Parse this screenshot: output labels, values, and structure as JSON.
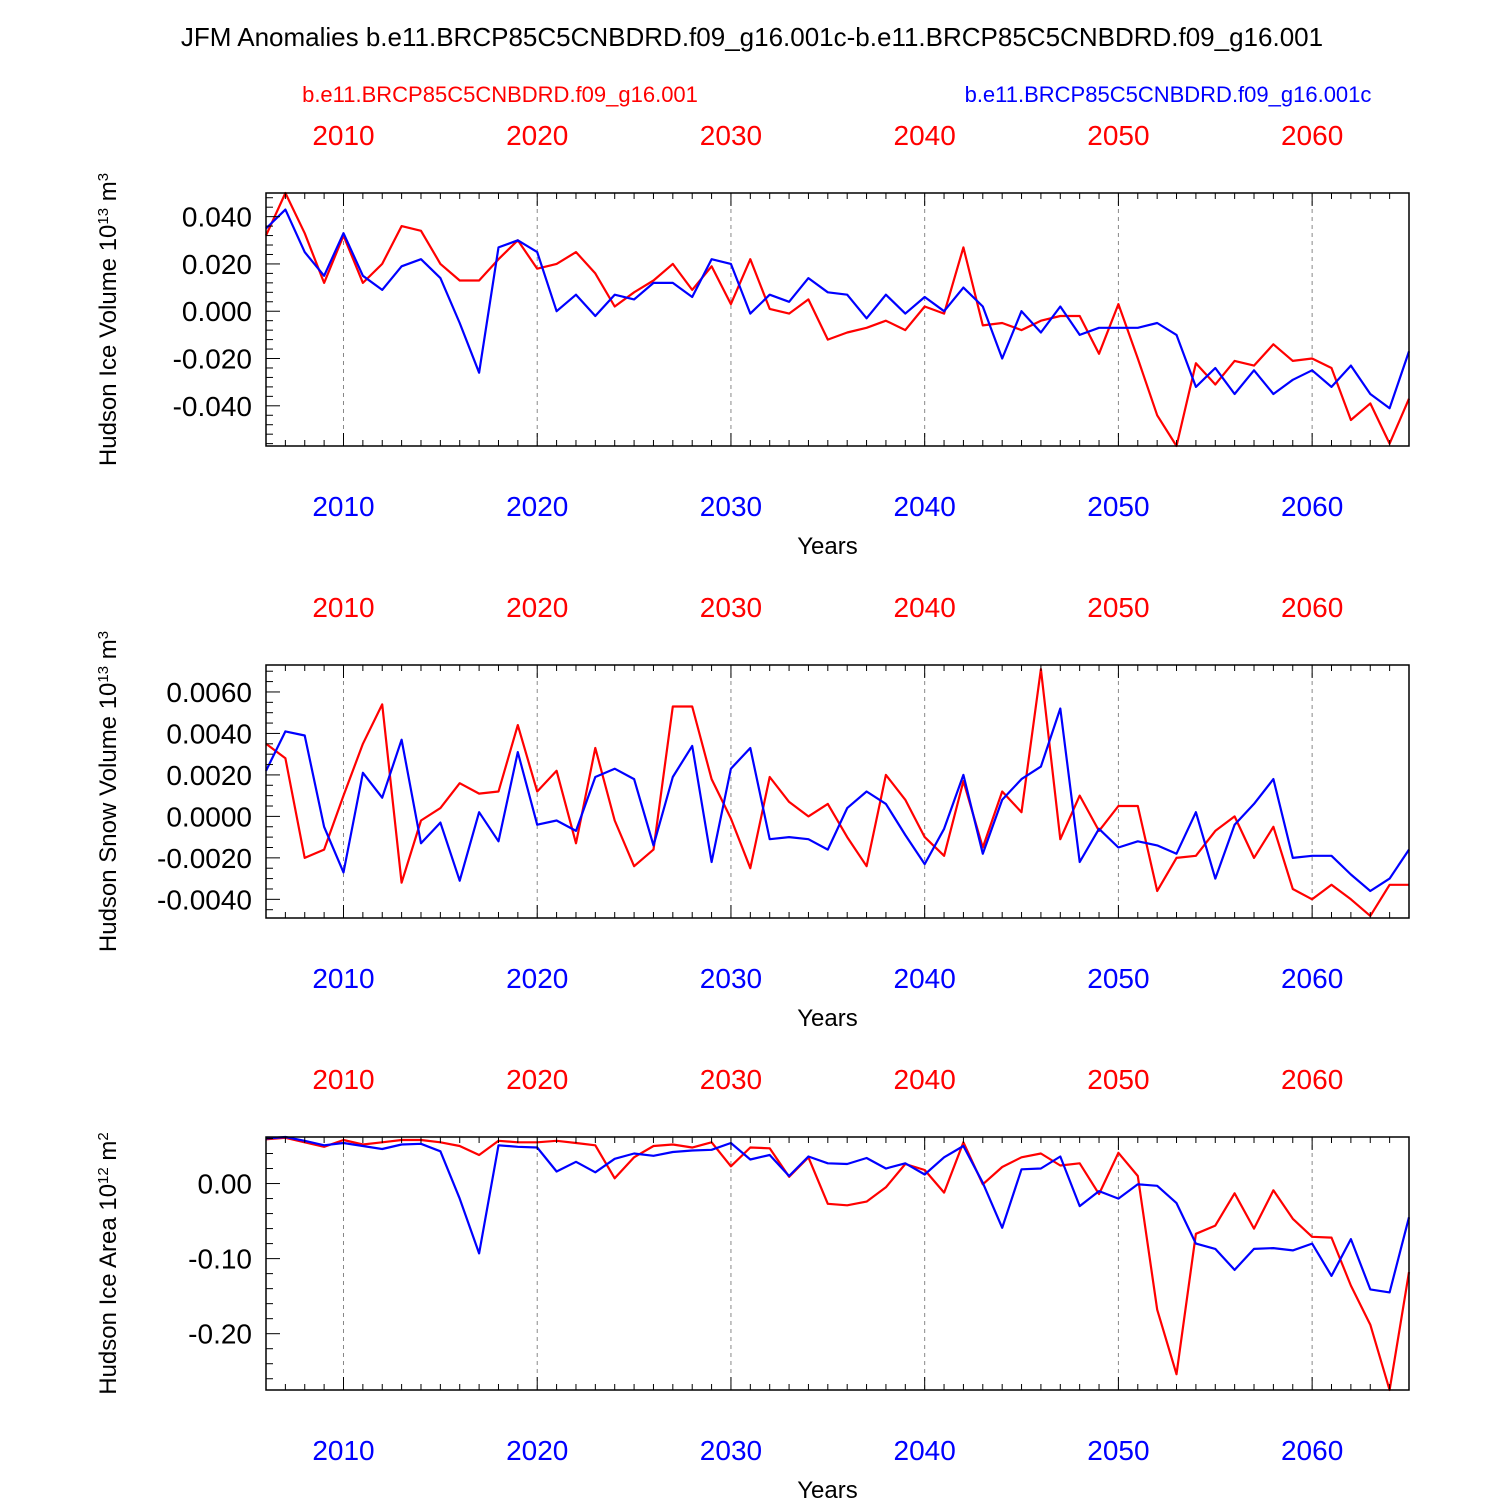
{
  "title": "JFM Anomalies b.e11.BRCP85C5CNBDRD.f09_g16.001c-b.e11.BRCP85C5CNBDRD.f09_g16.001",
  "colors": {
    "red": "#ff0000",
    "blue": "#0000ff",
    "axis": "#000000",
    "grid": "#888888"
  },
  "legend": {
    "red_label": "b.e11.BRCP85C5CNBDRD.f09_g16.001",
    "blue_label": "b.e11.BRCP85C5CNBDRD.f09_g16.001c"
  },
  "chart_data": [
    {
      "type": "line",
      "ylabel": "Hudson Ice Volume 10",
      "ylabel_sup1": "13",
      "ylabel_unit": " m",
      "ylabel_sup2": "3",
      "xlabel": "Years",
      "xlim": [
        2006,
        2065
      ],
      "ylim": [
        -0.057,
        0.05
      ],
      "yticks": [
        0.04,
        0.02,
        0.0,
        -0.02,
        -0.04
      ],
      "ytick_labels": [
        "0.040",
        "0.020",
        "0.000",
        "-0.020",
        "-0.040"
      ],
      "minor_step": 0.004,
      "xticks": [
        2010,
        2020,
        2030,
        2040,
        2050,
        2060
      ],
      "xtick_labels": [
        "2010",
        "2020",
        "2030",
        "2040",
        "2050",
        "2060"
      ],
      "x": [
        2006,
        2007,
        2008,
        2009,
        2010,
        2011,
        2012,
        2013,
        2014,
        2015,
        2016,
        2017,
        2018,
        2019,
        2020,
        2021,
        2022,
        2023,
        2024,
        2025,
        2026,
        2027,
        2028,
        2029,
        2030,
        2031,
        2032,
        2033,
        2034,
        2035,
        2036,
        2037,
        2038,
        2039,
        2040,
        2041,
        2042,
        2043,
        2044,
        2045,
        2046,
        2047,
        2048,
        2049,
        2050,
        2051,
        2052,
        2053,
        2054,
        2055,
        2056,
        2057,
        2058,
        2059,
        2060,
        2061,
        2062,
        2063,
        2064,
        2065
      ],
      "series": [
        {
          "name": "b.e11.BRCP85C5CNBDRD.f09_g16.001",
          "color": "red",
          "values": [
            0.032,
            0.05,
            0.033,
            0.012,
            0.032,
            0.012,
            0.02,
            0.036,
            0.034,
            0.02,
            0.013,
            0.013,
            0.022,
            0.03,
            0.018,
            0.02,
            0.025,
            0.016,
            0.002,
            0.008,
            0.013,
            0.02,
            0.009,
            0.019,
            0.003,
            0.022,
            0.001,
            -0.001,
            0.005,
            -0.012,
            -0.009,
            -0.007,
            -0.004,
            -0.008,
            0.002,
            -0.001,
            0.027,
            -0.006,
            -0.005,
            -0.008,
            -0.004,
            -0.002,
            -0.002,
            -0.018,
            0.003,
            -0.02,
            -0.044,
            -0.057,
            -0.022,
            -0.031,
            -0.021,
            -0.023,
            -0.014,
            -0.021,
            -0.02,
            -0.024,
            -0.046,
            -0.039,
            -0.056,
            -0.037
          ]
        },
        {
          "name": "b.e11.BRCP85C5CNBDRD.f09_g16.001c",
          "color": "blue",
          "values": [
            0.035,
            0.043,
            0.025,
            0.015,
            0.033,
            0.015,
            0.009,
            0.019,
            0.022,
            0.014,
            -0.005,
            -0.026,
            0.027,
            0.03,
            0.025,
            0.0,
            0.007,
            -0.002,
            0.007,
            0.005,
            0.012,
            0.012,
            0.006,
            0.022,
            0.02,
            -0.001,
            0.007,
            0.004,
            0.014,
            0.008,
            0.007,
            -0.003,
            0.007,
            -0.001,
            0.006,
            0.0,
            0.01,
            0.002,
            -0.02,
            0.0,
            -0.009,
            0.002,
            -0.01,
            -0.007,
            -0.007,
            -0.007,
            -0.005,
            -0.01,
            -0.032,
            -0.024,
            -0.035,
            -0.025,
            -0.035,
            -0.029,
            -0.025,
            -0.032,
            -0.023,
            -0.035,
            -0.041,
            -0.017
          ]
        }
      ]
    },
    {
      "type": "line",
      "ylabel": "Hudson Snow Volume 10",
      "ylabel_sup1": "13",
      "ylabel_unit": " m",
      "ylabel_sup2": "3",
      "xlabel": "Years",
      "xlim": [
        2006,
        2065
      ],
      "ylim": [
        -0.0049,
        0.0073
      ],
      "yticks": [
        0.006,
        0.004,
        0.002,
        0.0,
        -0.002,
        -0.004
      ],
      "ytick_labels": [
        "0.0060",
        "0.0040",
        "0.0020",
        "0.0000",
        "-0.0020",
        "-0.0040"
      ],
      "minor_step": 0.0005,
      "xticks": [
        2010,
        2020,
        2030,
        2040,
        2050,
        2060
      ],
      "xtick_labels": [
        "2010",
        "2020",
        "2030",
        "2040",
        "2050",
        "2060"
      ],
      "x": [
        2006,
        2007,
        2008,
        2009,
        2010,
        2011,
        2012,
        2013,
        2014,
        2015,
        2016,
        2017,
        2018,
        2019,
        2020,
        2021,
        2022,
        2023,
        2024,
        2025,
        2026,
        2027,
        2028,
        2029,
        2030,
        2031,
        2032,
        2033,
        2034,
        2035,
        2036,
        2037,
        2038,
        2039,
        2040,
        2041,
        2042,
        2043,
        2044,
        2045,
        2046,
        2047,
        2048,
        2049,
        2050,
        2051,
        2052,
        2053,
        2054,
        2055,
        2056,
        2057,
        2058,
        2059,
        2060,
        2061,
        2062,
        2063,
        2064,
        2065
      ],
      "series": [
        {
          "name": "b.e11.BRCP85C5CNBDRD.f09_g16.001",
          "color": "red",
          "values": [
            0.0035,
            0.0028,
            -0.002,
            -0.0016,
            0.001,
            0.0035,
            0.0054,
            -0.0032,
            -0.0002,
            0.0004,
            0.0016,
            0.0011,
            0.0012,
            0.0044,
            0.0012,
            0.0022,
            -0.0013,
            0.0033,
            -0.0002,
            -0.0024,
            -0.0016,
            0.0053,
            0.0053,
            0.0018,
            -0.0001,
            -0.0025,
            0.0019,
            0.0007,
            0.0,
            0.0006,
            -0.001,
            -0.0024,
            0.002,
            0.0008,
            -0.001,
            -0.0019,
            0.0017,
            -0.0015,
            0.0012,
            0.0002,
            0.0071,
            -0.0011,
            0.001,
            -0.0007,
            0.0005,
            0.0005,
            -0.0036,
            -0.002,
            -0.0019,
            -0.0007,
            0.0,
            -0.002,
            -0.0005,
            -0.0035,
            -0.004,
            -0.0033,
            -0.004,
            -0.0048,
            -0.0033,
            -0.0033
          ]
        },
        {
          "name": "b.e11.BRCP85C5CNBDRD.f09_g16.001c",
          "color": "blue",
          "values": [
            0.0022,
            0.0041,
            0.0039,
            -0.0005,
            -0.0027,
            0.0021,
            0.0009,
            0.0037,
            -0.0013,
            -0.0003,
            -0.0031,
            0.0002,
            -0.0012,
            0.0031,
            -0.0004,
            -0.0002,
            -0.0007,
            0.0019,
            0.0023,
            0.0018,
            -0.0014,
            0.0019,
            0.0034,
            -0.0022,
            0.0023,
            0.0033,
            -0.0011,
            -0.001,
            -0.0011,
            -0.0016,
            0.0004,
            0.0012,
            0.0006,
            -0.0009,
            -0.0023,
            -0.0006,
            0.002,
            -0.0018,
            0.0008,
            0.0018,
            0.0024,
            0.0052,
            -0.0022,
            -0.0006,
            -0.0015,
            -0.0012,
            -0.0014,
            -0.0018,
            0.0002,
            -0.003,
            -0.0004,
            0.0006,
            0.0018,
            -0.002,
            -0.0019,
            -0.0019,
            -0.0028,
            -0.0036,
            -0.003,
            -0.0016
          ]
        }
      ]
    },
    {
      "type": "line",
      "ylabel": "Hudson Ice Area 10",
      "ylabel_sup1": "12",
      "ylabel_unit": " m",
      "ylabel_sup2": "2",
      "xlabel": "Years",
      "xlim": [
        2006,
        2065
      ],
      "ylim": [
        -0.275,
        0.062
      ],
      "yticks": [
        0.0,
        -0.1,
        -0.2
      ],
      "ytick_labels": [
        "0.00",
        "-0.10",
        "-0.20"
      ],
      "minor_step": 0.02,
      "xticks": [
        2010,
        2020,
        2030,
        2040,
        2050,
        2060
      ],
      "xtick_labels": [
        "2010",
        "2020",
        "2030",
        "2040",
        "2050",
        "2060"
      ],
      "x": [
        2006,
        2007,
        2008,
        2009,
        2010,
        2011,
        2012,
        2013,
        2014,
        2015,
        2016,
        2017,
        2018,
        2019,
        2020,
        2021,
        2022,
        2023,
        2024,
        2025,
        2026,
        2027,
        2028,
        2029,
        2030,
        2031,
        2032,
        2033,
        2034,
        2035,
        2036,
        2037,
        2038,
        2039,
        2040,
        2041,
        2042,
        2043,
        2044,
        2045,
        2046,
        2047,
        2048,
        2049,
        2050,
        2051,
        2052,
        2053,
        2054,
        2055,
        2056,
        2057,
        2058,
        2059,
        2060,
        2061,
        2062,
        2063,
        2064,
        2065
      ],
      "series": [
        {
          "name": "b.e11.BRCP85C5CNBDRD.f09_g16.001",
          "color": "red",
          "values": [
            0.059,
            0.061,
            0.055,
            0.049,
            0.058,
            0.052,
            0.055,
            0.058,
            0.058,
            0.055,
            0.05,
            0.038,
            0.057,
            0.055,
            0.055,
            0.057,
            0.054,
            0.051,
            0.007,
            0.035,
            0.05,
            0.052,
            0.048,
            0.055,
            0.023,
            0.048,
            0.047,
            0.009,
            0.035,
            -0.027,
            -0.029,
            -0.024,
            -0.005,
            0.026,
            0.018,
            -0.012,
            0.055,
            -0.001,
            0.022,
            0.035,
            0.04,
            0.024,
            0.027,
            -0.014,
            0.041,
            0.01,
            -0.168,
            -0.254,
            -0.067,
            -0.056,
            -0.013,
            -0.06,
            -0.009,
            -0.047,
            -0.071,
            -0.072,
            -0.136,
            -0.188,
            -0.275,
            -0.118
          ]
        },
        {
          "name": "b.e11.BRCP85C5CNBDRD.f09_g16.001c",
          "color": "blue",
          "values": [
            0.06,
            0.062,
            0.057,
            0.051,
            0.054,
            0.05,
            0.046,
            0.052,
            0.053,
            0.043,
            -0.02,
            -0.093,
            0.051,
            0.049,
            0.048,
            0.016,
            0.029,
            0.015,
            0.033,
            0.04,
            0.037,
            0.042,
            0.044,
            0.045,
            0.054,
            0.032,
            0.038,
            0.01,
            0.036,
            0.027,
            0.026,
            0.034,
            0.02,
            0.027,
            0.012,
            0.035,
            0.05,
            0.001,
            -0.059,
            0.019,
            0.02,
            0.036,
            -0.03,
            -0.01,
            -0.02,
            -0.001,
            -0.003,
            -0.026,
            -0.08,
            -0.087,
            -0.115,
            -0.087,
            -0.086,
            -0.089,
            -0.08,
            -0.123,
            -0.074,
            -0.141,
            -0.145,
            -0.045
          ]
        }
      ]
    }
  ]
}
